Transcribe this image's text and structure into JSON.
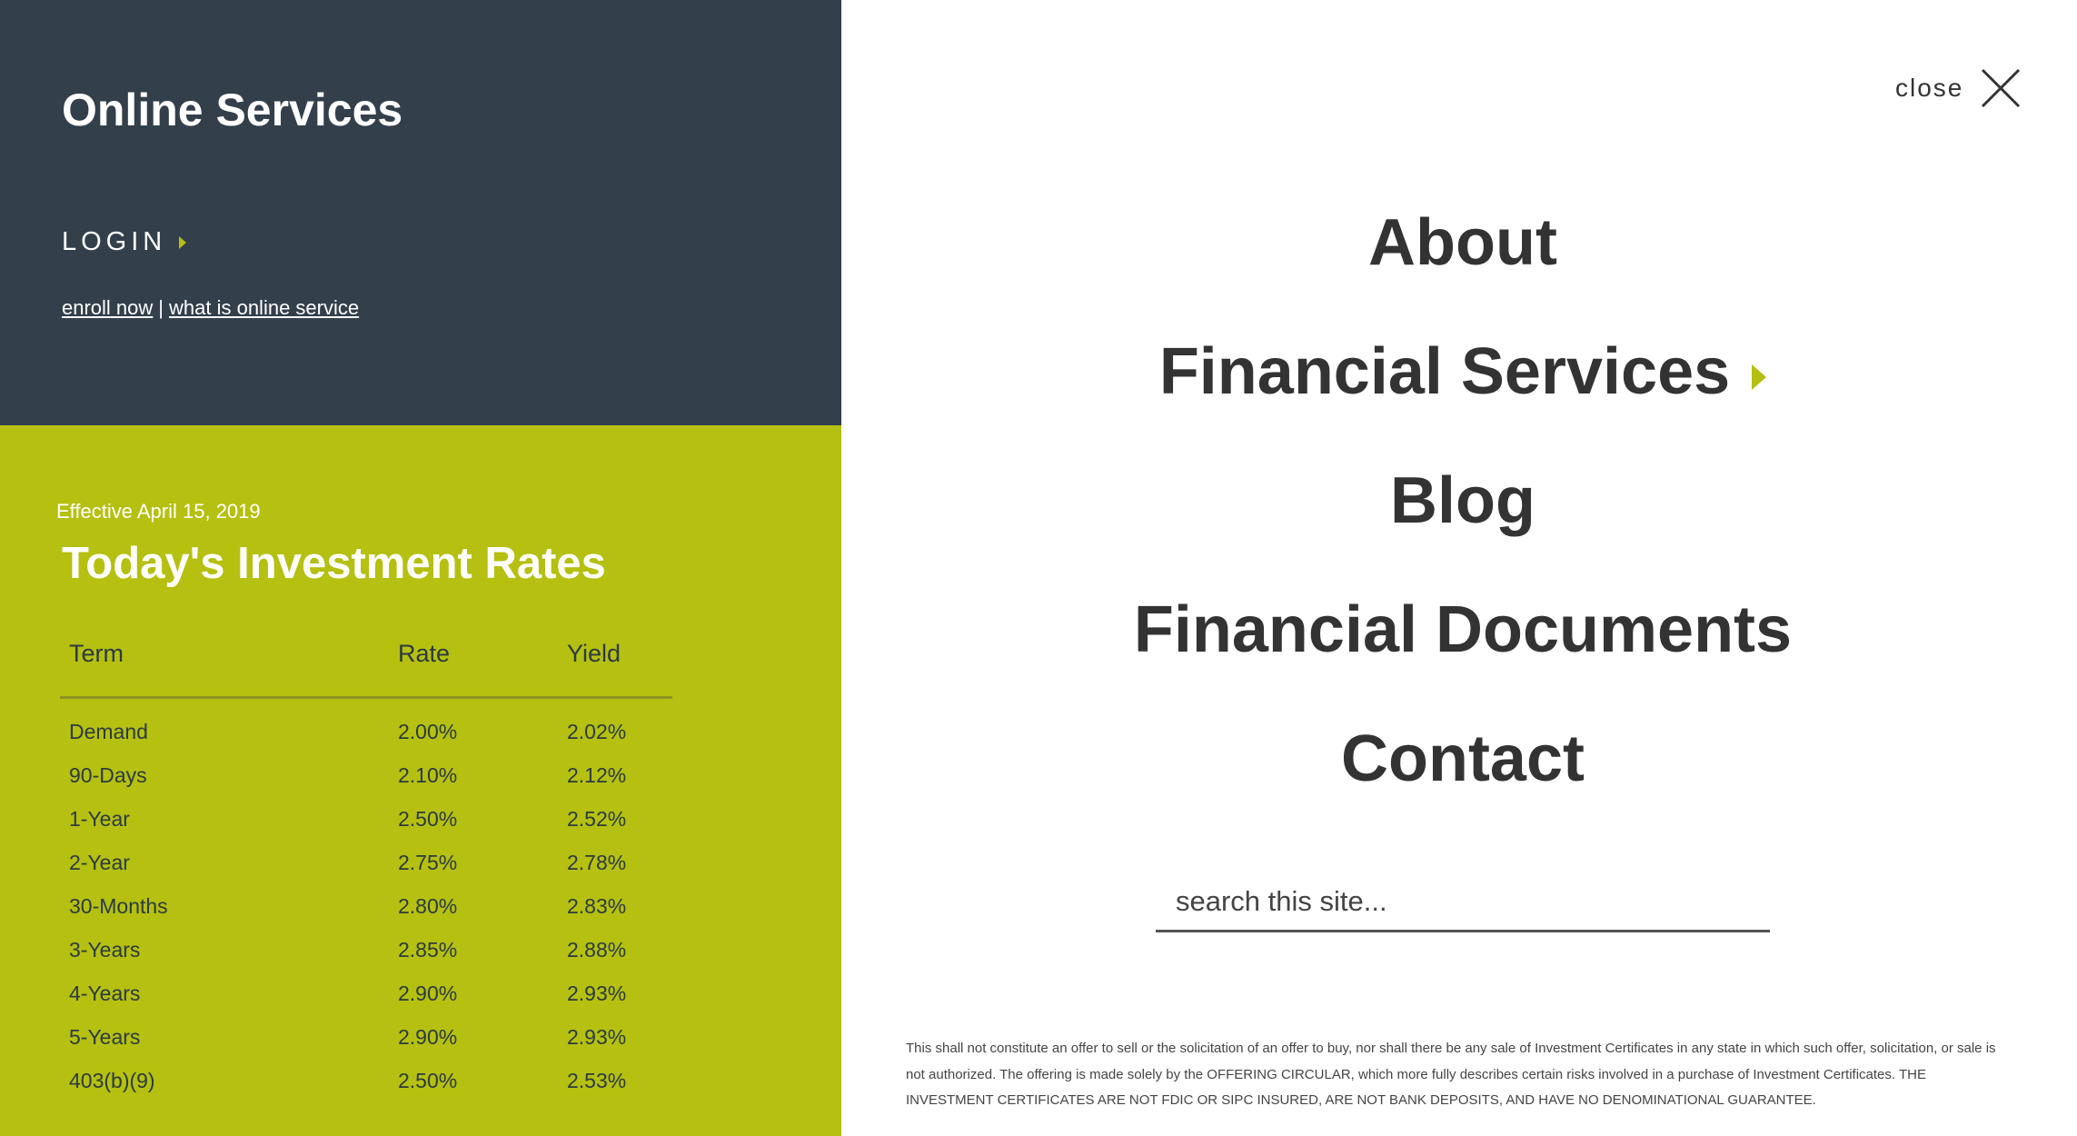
{
  "online_services": {
    "title": "Online Services",
    "login_label": "LOGIN",
    "enroll_link": "enroll now",
    "separator": "|",
    "what_is_link": "what is online service"
  },
  "rates": {
    "effective": "Effective April 15, 2019",
    "title": "Today's Investment Rates",
    "headers": {
      "term": "Term",
      "rate": "Rate",
      "yield": "Yield"
    },
    "rows": [
      {
        "term": "Demand",
        "rate": "2.00%",
        "yield": "2.02%"
      },
      {
        "term": "90-Days",
        "rate": "2.10%",
        "yield": "2.12%"
      },
      {
        "term": "1-Year",
        "rate": "2.50%",
        "yield": "2.52%"
      },
      {
        "term": "2-Year",
        "rate": "2.75%",
        "yield": "2.78%"
      },
      {
        "term": "30-Months",
        "rate": "2.80%",
        "yield": "2.83%"
      },
      {
        "term": "3-Years",
        "rate": "2.85%",
        "yield": "2.88%"
      },
      {
        "term": "4-Years",
        "rate": "2.90%",
        "yield": "2.93%"
      },
      {
        "term": "5-Years",
        "rate": "2.90%",
        "yield": "2.93%"
      },
      {
        "term": "403(b)(9)",
        "rate": "2.50%",
        "yield": "2.53%"
      }
    ]
  },
  "close": {
    "label": "close"
  },
  "nav": {
    "items": [
      {
        "label": "About"
      },
      {
        "label": "Financial Services"
      },
      {
        "label": "Blog"
      },
      {
        "label": "Financial Documents"
      },
      {
        "label": "Contact"
      }
    ]
  },
  "search": {
    "placeholder": "search this site..."
  },
  "disclaimer": "This shall not constitute an offer to sell or the solicitation of an offer to buy, nor shall there be any sale of Investment Certificates in any state in which such offer, solicitation, or sale is not authorized. The offering is made solely by the OFFERING CIRCULAR, which more fully describes certain risks involved in a purchase of Investment Certificates. THE INVESTMENT CERTIFICATES ARE NOT FDIC OR SIPC INSURED, ARE NOT BANK DEPOSITS, AND HAVE NO DENOMINATIONAL GUARANTEE.",
  "colors": {
    "dark_panel": "#333f4b",
    "accent_green": "#b5c010",
    "text_dark": "#333333"
  }
}
